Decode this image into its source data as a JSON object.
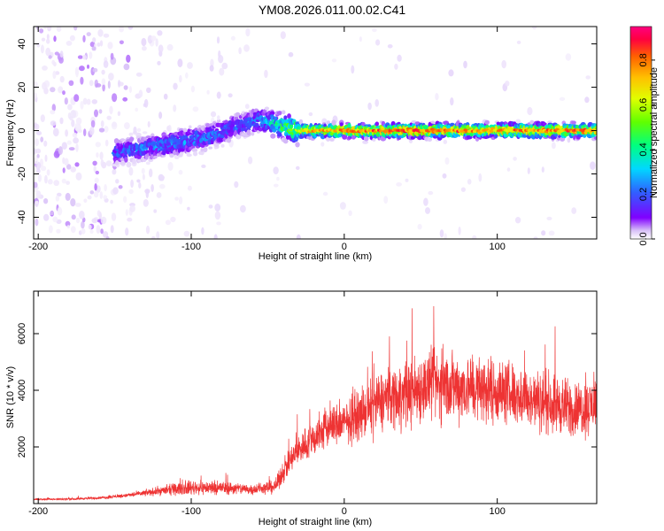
{
  "title": "YM08.2026.011.00.02.C41",
  "chart_data": [
    {
      "type": "heatmap",
      "title": "",
      "xlabel": "Height of straight line (km)",
      "ylabel": "Frequency (Hz)",
      "xlim": [
        -203,
        165
      ],
      "ylim": [
        -50,
        48
      ],
      "xticks": [
        -200,
        -100,
        0,
        100
      ],
      "yticks": [
        -40,
        -20,
        0,
        20,
        40
      ],
      "colorbar": {
        "label": "Normalized spectral amplitude",
        "range": [
          0,
          0.95
        ],
        "ticks": [
          0.0,
          0.2,
          0.4,
          0.6,
          0.8
        ],
        "tick_labels": [
          "0.0",
          "0.2",
          "0.4",
          "0.6",
          "0.8"
        ],
        "colormap": [
          "#ffffff",
          "#d8c0f8",
          "#8000ff",
          "#3060ff",
          "#00d8ff",
          "#00ff80",
          "#60ff00",
          "#e0ff00",
          "#ffc000",
          "#ff6000",
          "#ff0040",
          "#ff0080"
        ]
      },
      "ridge": {
        "description_points_height_km": [
          -150,
          -120,
          -90,
          -70,
          -55,
          -45,
          -30,
          0,
          50,
          100,
          165
        ],
        "frequency_hz": [
          -10,
          -7,
          -3,
          2,
          5,
          3,
          0,
          0,
          0,
          0,
          0
        ],
        "peak_amplitude": [
          0.3,
          0.35,
          0.35,
          0.3,
          0.35,
          0.45,
          0.7,
          0.8,
          0.85,
          0.8,
          0.8
        ]
      },
      "grid": false,
      "legend": "none"
    },
    {
      "type": "line",
      "title": "",
      "xlabel": "Height of straight line (km)",
      "ylabel": "SNR (10 * v/v)",
      "xlim": [
        -203,
        165
      ],
      "ylim": [
        0,
        7500
      ],
      "xticks": [
        -200,
        -100,
        0,
        100
      ],
      "yticks": [
        2000,
        4000,
        6000
      ],
      "series": [
        {
          "name": "SNR",
          "color": "#ee3333",
          "x": [
            -203,
            -180,
            -160,
            -140,
            -120,
            -100,
            -80,
            -60,
            -45,
            -38,
            -30,
            -20,
            -10,
            0,
            10,
            20,
            30,
            40,
            50,
            60,
            70,
            80,
            90,
            100,
            110,
            120,
            130,
            140,
            150,
            160,
            165
          ],
          "y": [
            150,
            160,
            200,
            300,
            450,
            560,
            560,
            500,
            600,
            1300,
            1900,
            2300,
            2700,
            2850,
            3100,
            3500,
            3800,
            3850,
            4100,
            4200,
            4150,
            4100,
            4050,
            3950,
            3900,
            3700,
            3600,
            3500,
            3300,
            3400,
            3600
          ],
          "noise_amplitude": [
            60,
            60,
            80,
            120,
            250,
            400,
            400,
            300,
            400,
            700,
            900,
            1100,
            1200,
            1200,
            1300,
            1600,
            1800,
            1900,
            2000,
            2000,
            2000,
            1900,
            1900,
            1800,
            1800,
            1700,
            1700,
            1700,
            1600,
            1600,
            1600
          ]
        }
      ],
      "grid": false,
      "legend": "none"
    }
  ]
}
